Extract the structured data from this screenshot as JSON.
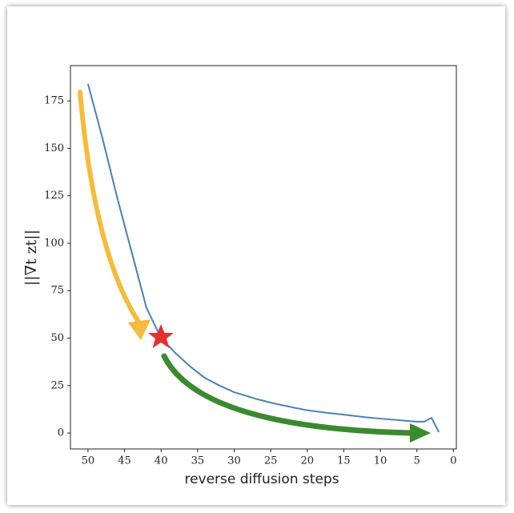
{
  "chart_data": {
    "type": "line",
    "xlabel": "reverse diffusion steps",
    "ylabel": "||∇t zt||",
    "x": [
      50,
      48,
      46,
      44,
      42,
      40,
      38,
      36,
      34,
      32,
      30,
      27,
      25,
      22,
      20,
      17,
      15,
      12,
      10,
      7,
      5,
      4,
      3,
      2
    ],
    "values": [
      184,
      155,
      124,
      95,
      66,
      50,
      42,
      35,
      29,
      25,
      21.5,
      18,
      16,
      13.5,
      12,
      10.5,
      9.7,
      8.3,
      7.6,
      6.6,
      6,
      6,
      8,
      0.5
    ],
    "color": "#4a80b8",
    "xlim": [
      52.4,
      -0.4
    ],
    "xticks": [
      50,
      45,
      40,
      35,
      30,
      25,
      20,
      15,
      10,
      5,
      0
    ],
    "ylim": [
      -8.4,
      193.6
    ],
    "yticks": [
      0,
      25,
      50,
      75,
      100,
      125,
      150,
      175
    ],
    "grid": false
  }
}
